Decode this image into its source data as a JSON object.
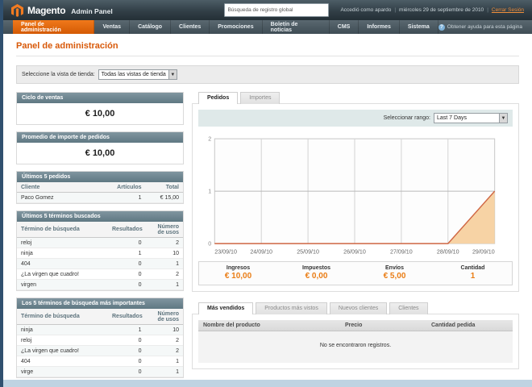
{
  "header": {
    "logo_text": "Magento",
    "logo_suffix": "Admin Panel",
    "search_placeholder": "Búsqueda de registro global",
    "logged_in_as": "Accedió como apardo",
    "date": "miércoles 29 de septiembre de 2010",
    "logout_label": "Cerrar Sesión"
  },
  "nav": {
    "items": [
      "Panel de administración",
      "Ventas",
      "Catálogo",
      "Clientes",
      "Promociones",
      "Boletín de noticias",
      "CMS",
      "Informes",
      "Sistema"
    ],
    "active_index": 0,
    "help_label": "Obtener ayuda para esta página"
  },
  "page": {
    "title": "Panel de administración",
    "store_view_label": "Seleccione la vista de tienda:",
    "store_view_value": "Todas las vistas de tienda"
  },
  "left": {
    "cards": [
      {
        "title": "Ciclo de ventas",
        "value": "€ 10,00"
      },
      {
        "title": "Promedio de importe de pedidos",
        "value": "€ 10,00"
      }
    ],
    "tables": [
      {
        "title": "Últimos 5 pedidos",
        "columns": [
          "Cliente",
          "Artículos",
          "Total"
        ],
        "rows": [
          [
            "Paco Gomez",
            "1",
            "€ 15,00"
          ]
        ]
      },
      {
        "title": "Últimos 5 términos buscados",
        "columns": [
          "Término de búsqueda",
          "Resultados",
          "Número de usos"
        ],
        "rows": [
          [
            "reloj",
            "0",
            "2"
          ],
          [
            "ninja",
            "1",
            "10"
          ],
          [
            "404",
            "0",
            "1"
          ],
          [
            "¿La virgen que cuadro!",
            "0",
            "2"
          ],
          [
            "virgen",
            "0",
            "1"
          ]
        ]
      },
      {
        "title": "Los 5 términos de búsqueda más importantes",
        "columns": [
          "Término de búsqueda",
          "Resultados",
          "Número de usos"
        ],
        "rows": [
          [
            "ninja",
            "1",
            "10"
          ],
          [
            "reloj",
            "0",
            "2"
          ],
          [
            "¿La virgen que cuadro!",
            "0",
            "2"
          ],
          [
            "404",
            "0",
            "1"
          ],
          [
            "virge",
            "0",
            "1"
          ]
        ]
      }
    ]
  },
  "right": {
    "chart_tabs": [
      "Pedidos",
      "Importes"
    ],
    "range_label": "Seleccionar rango:",
    "range_value": "Last 7 Days",
    "stats": [
      {
        "label": "Ingresos",
        "value": "€ 10,00"
      },
      {
        "label": "Impuestos",
        "value": "€ 0,00"
      },
      {
        "label": "Envíos",
        "value": "€ 5,00"
      },
      {
        "label": "Cantidad",
        "value": "1"
      }
    ],
    "bottom_tabs": [
      "Más vendidos",
      "Productos más vistos",
      "Nuevos clientes",
      "Clientes"
    ],
    "bottom_table": {
      "columns": [
        "Nombre del producto",
        "Precio",
        "Cantidad pedida"
      ],
      "empty_text": "No se encontraron registros."
    }
  },
  "chart_data": {
    "type": "area",
    "title": "Pedidos - Last 7 Days",
    "x": [
      "23/09/10",
      "24/09/10",
      "25/09/10",
      "26/09/10",
      "27/09/10",
      "28/09/10",
      "29/09/10"
    ],
    "values": [
      0,
      0,
      0,
      0,
      0,
      0,
      1
    ],
    "ylim": [
      0,
      2
    ],
    "yticks": [
      0,
      1,
      2
    ],
    "grid": true,
    "line_color": "#cf6744",
    "fill_color": "#f7d3a5"
  },
  "colors": {
    "accent_orange": "#e96302",
    "title_orange": "#d85909",
    "value_orange": "#ea7d15",
    "card_header_slate": "#6b8591",
    "header_dark": "#2c3940",
    "range_bar_teal": "#dfe9e9"
  }
}
